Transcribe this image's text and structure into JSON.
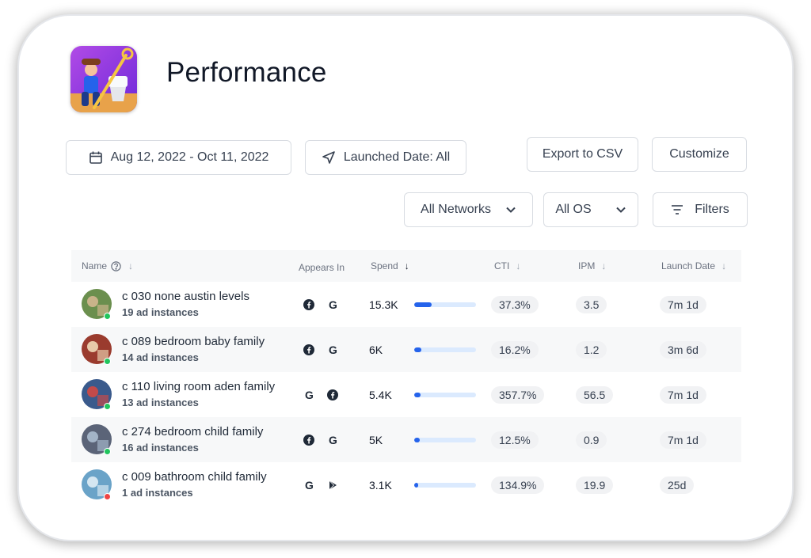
{
  "header": {
    "title": "Performance",
    "app_icon": "homescapes-app-icon"
  },
  "toolbar": {
    "date_range": "Aug 12, 2022 - Oct 11, 2022",
    "launched_date": "Launched Date: All",
    "export": "Export to CSV",
    "customize": "Customize",
    "networks": "All Networks",
    "os": "All OS",
    "filters": "Filters"
  },
  "table": {
    "columns": {
      "name": "Name",
      "appears_in": "Appears In",
      "spend": "Spend",
      "cti": "CTI",
      "ipm": "IPM",
      "launch_date": "Launch Date"
    },
    "rows": [
      {
        "name": "c 030 none austin levels",
        "instances": "19 ad instances",
        "networks": [
          "facebook-icon",
          "google-icon"
        ],
        "spend": "15.3K",
        "spend_fraction": 0.28,
        "cti": "37.3%",
        "ipm": "3.5",
        "launch": "7m 1d",
        "status_color": "#22c55e"
      },
      {
        "name": "c 089 bedroom baby family",
        "instances": "14 ad instances",
        "networks": [
          "facebook-icon",
          "google-icon"
        ],
        "spend": "6K",
        "spend_fraction": 0.11,
        "cti": "16.2%",
        "ipm": "1.2",
        "launch": "3m 6d",
        "status_color": "#22c55e"
      },
      {
        "name": "c 110 living room aden family",
        "instances": "13 ad instances",
        "networks": [
          "google-icon",
          "facebook-icon"
        ],
        "spend": "5.4K",
        "spend_fraction": 0.1,
        "cti": "357.7%",
        "ipm": "56.5",
        "launch": "7m 1d",
        "status_color": "#22c55e"
      },
      {
        "name": "c 274 bedroom child family",
        "instances": "16 ad instances",
        "networks": [
          "facebook-icon",
          "google-icon"
        ],
        "spend": "5K",
        "spend_fraction": 0.09,
        "cti": "12.5%",
        "ipm": "0.9",
        "launch": "7m 1d",
        "status_color": "#22c55e"
      },
      {
        "name": "c 009 bathroom child family",
        "instances": "1 ad instances",
        "networks": [
          "google-icon",
          "play-store-icon"
        ],
        "spend": "3.1K",
        "spend_fraction": 0.05,
        "cti": "134.9%",
        "ipm": "19.9",
        "launch": "25d",
        "status_color": "#ef4444"
      }
    ]
  },
  "colors": {
    "accent": "#2563eb",
    "bar_track": "#dbeafe",
    "active": "#22c55e",
    "inactive": "#ef4444"
  }
}
